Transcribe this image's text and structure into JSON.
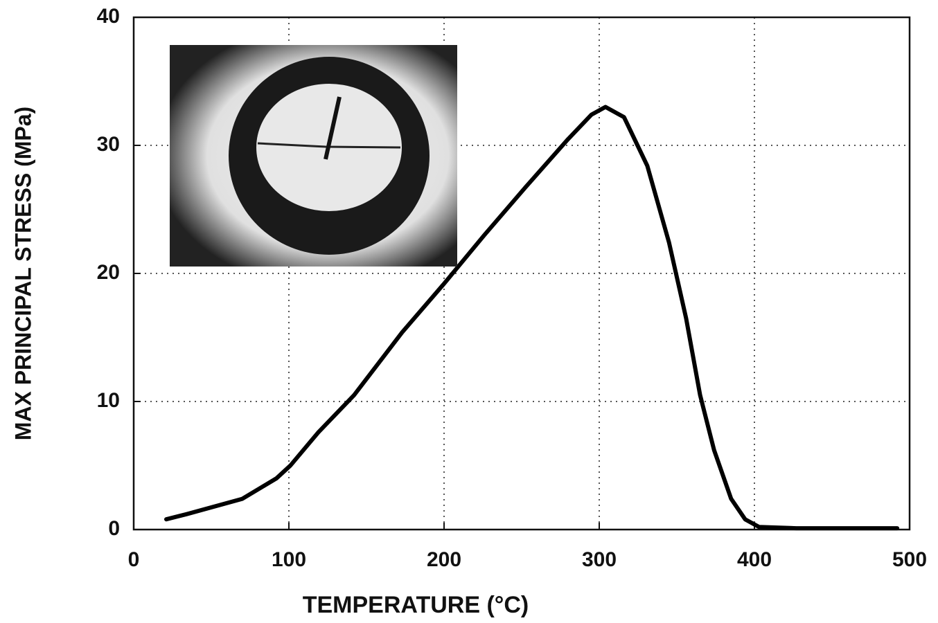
{
  "chart_data": {
    "type": "line",
    "x_label": "TEMPERATURE (°C)",
    "y_label": "MAX PRINCIPAL STRESS (MPa)",
    "x": [
      21,
      34,
      70,
      92,
      101,
      119,
      142,
      173,
      200,
      226,
      253,
      280,
      295,
      304,
      316,
      331,
      345,
      356,
      365,
      374,
      385,
      394,
      403,
      427,
      492
    ],
    "values": [
      0.8,
      1.2,
      2.4,
      4.0,
      5.0,
      7.6,
      10.5,
      15.4,
      19.2,
      23.0,
      26.8,
      30.5,
      32.4,
      33.0,
      32.2,
      28.4,
      22.4,
      16.5,
      10.5,
      6.2,
      2.4,
      0.8,
      0.2,
      0.1,
      0.1
    ],
    "color": "#000000",
    "xlim": [
      0,
      500
    ],
    "xticks": [
      0,
      100,
      200,
      300,
      400,
      500
    ],
    "ylim": [
      0,
      40
    ],
    "yticks": [
      0,
      10,
      20,
      30,
      40
    ],
    "grid": true
  }
}
